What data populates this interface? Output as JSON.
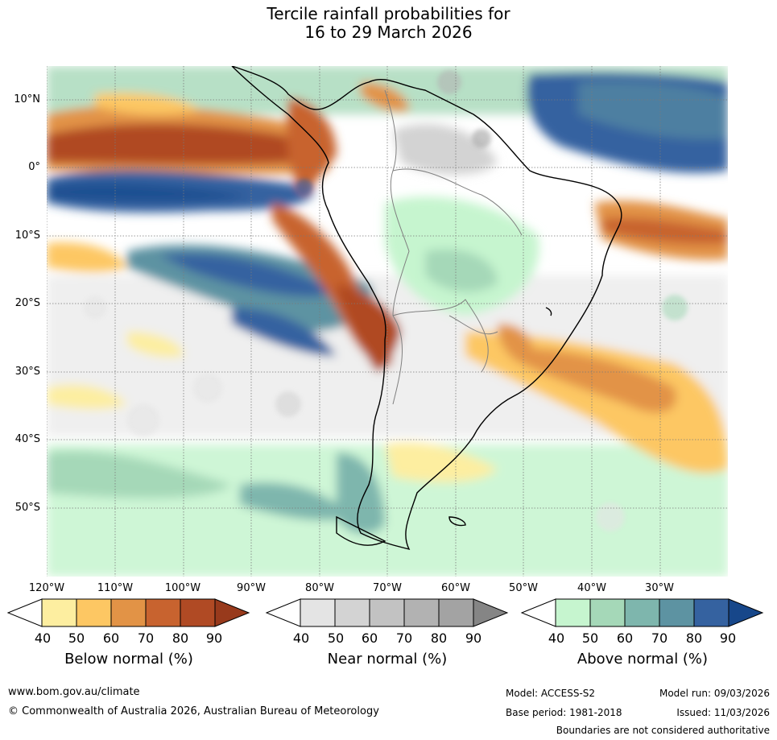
{
  "title": {
    "line1": "Tercile rainfall probabilities for",
    "line2": "16 to 29 March 2026"
  },
  "map": {
    "lat_labels": [
      "10°N",
      "0°",
      "10°S",
      "20°S",
      "30°S",
      "40°S",
      "50°S"
    ],
    "lon_labels": [
      "120°W",
      "110°W",
      "100°W",
      "90°W",
      "80°W",
      "70°W",
      "60°W",
      "50°W",
      "40°W",
      "30°W"
    ]
  },
  "colorbars": [
    {
      "label": "Below normal (%)",
      "ticks": [
        "40",
        "50",
        "60",
        "70",
        "80",
        "90"
      ],
      "colors": [
        "#fdeea0",
        "#fdc763",
        "#e29346",
        "#c8632f",
        "#b04a24",
        "#983a1c"
      ]
    },
    {
      "label": "Near normal (%)",
      "ticks": [
        "40",
        "50",
        "60",
        "70",
        "80",
        "90"
      ],
      "colors": [
        "#e4e4e4",
        "#d3d3d3",
        "#c2c2c2",
        "#b2b2b2",
        "#a3a3a3",
        "#858585"
      ]
    },
    {
      "label": "Above normal (%)",
      "ticks": [
        "40",
        "50",
        "60",
        "70",
        "80",
        "90"
      ],
      "colors": [
        "#c6f5cf",
        "#a5d8b8",
        "#7eb6ad",
        "#5d93a2",
        "#3562a0",
        "#17478a"
      ]
    }
  ],
  "footer": {
    "website": "www.bom.gov.au/climate",
    "copyright": "© Commonwealth of Australia 2026, Australian Bureau of Meteorology",
    "model": "Model: ACCESS-S2",
    "model_run": "Model run: 09/03/2026",
    "base_period": "Base period: 1981-2018",
    "issued": "Issued: 11/03/2026",
    "disclaimer": "Boundaries are not considered authoritative"
  }
}
